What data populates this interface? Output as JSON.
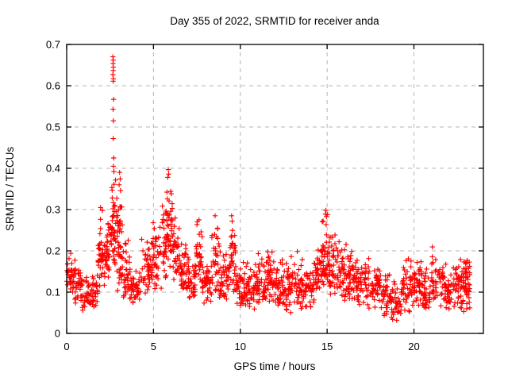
{
  "window": {
    "background": "#ffffff"
  },
  "chart_data": {
    "type": "scatter",
    "title": "Day 355 of 2022, SRMTID for receiver anda",
    "xlabel": "GPS time / hours",
    "ylabel": "SRMTID / TECUs",
    "xlim": [
      0,
      24
    ],
    "ylim": [
      0,
      0.7
    ],
    "xticks": [
      0,
      5,
      10,
      15,
      20
    ],
    "xtick_labels": [
      "0",
      "5",
      "10",
      "15",
      "20"
    ],
    "yticks": [
      0,
      0.1,
      0.2,
      0.3,
      0.4,
      0.5,
      0.6,
      0.7
    ],
    "ytick_labels": [
      "0",
      "0.1",
      "0.2",
      "0.3",
      "0.4",
      "0.5",
      "0.6",
      "0.7"
    ],
    "grid": true,
    "grid_style": "dashed",
    "grid_color": "#b4b4b4",
    "axis_color": "#000000",
    "marker": {
      "shape": "plus",
      "color": "#ff0000",
      "size": 7
    },
    "legend": null,
    "series": [
      {
        "name": "SRMTID",
        "color": "#ff0000",
        "notable_points": [
          [
            2.66,
            0.67
          ],
          [
            2.68,
            0.662
          ],
          [
            2.67,
            0.654
          ],
          [
            2.69,
            0.645
          ],
          [
            2.68,
            0.637
          ],
          [
            2.66,
            0.627
          ],
          [
            2.69,
            0.617
          ],
          [
            2.68,
            0.611
          ],
          [
            2.7,
            0.567
          ],
          [
            2.67,
            0.543
          ],
          [
            2.69,
            0.515
          ],
          [
            2.68,
            0.472
          ],
          [
            2.71,
            0.425
          ],
          [
            2.69,
            0.405
          ],
          [
            2.72,
            0.392
          ],
          [
            3.05,
            0.39
          ],
          [
            3.08,
            0.374
          ],
          [
            3.02,
            0.36
          ],
          [
            3.1,
            0.346
          ],
          [
            5.85,
            0.397
          ],
          [
            5.88,
            0.386
          ],
          [
            5.82,
            0.378
          ],
          [
            1.95,
            0.305
          ],
          [
            2.06,
            0.298
          ],
          [
            8.55,
            0.285
          ],
          [
            9.5,
            0.285
          ],
          [
            9.53,
            0.272
          ],
          [
            14.93,
            0.298
          ],
          [
            14.9,
            0.289
          ],
          [
            14.96,
            0.283
          ]
        ],
        "density_bands": [
          [
            0.0,
            0.35,
            0.09,
            0.21,
            30
          ],
          [
            0.35,
            0.9,
            0.07,
            0.19,
            42
          ],
          [
            0.9,
            1.45,
            0.055,
            0.145,
            36
          ],
          [
            1.45,
            1.8,
            0.06,
            0.17,
            26
          ],
          [
            1.8,
            2.25,
            0.11,
            0.305,
            46
          ],
          [
            2.25,
            2.55,
            0.13,
            0.285,
            30
          ],
          [
            2.55,
            2.9,
            0.14,
            0.4,
            46
          ],
          [
            2.9,
            3.25,
            0.1,
            0.345,
            42
          ],
          [
            3.25,
            3.7,
            0.07,
            0.24,
            36
          ],
          [
            3.7,
            4.3,
            0.07,
            0.165,
            42
          ],
          [
            4.3,
            4.85,
            0.09,
            0.235,
            40
          ],
          [
            4.85,
            5.45,
            0.1,
            0.3,
            46
          ],
          [
            5.45,
            5.75,
            0.13,
            0.33,
            30
          ],
          [
            5.75,
            6.1,
            0.16,
            0.385,
            40
          ],
          [
            6.1,
            6.5,
            0.13,
            0.3,
            36
          ],
          [
            6.5,
            7.0,
            0.1,
            0.22,
            40
          ],
          [
            7.0,
            7.45,
            0.08,
            0.19,
            36
          ],
          [
            7.45,
            7.8,
            0.1,
            0.29,
            30
          ],
          [
            7.8,
            8.35,
            0.07,
            0.19,
            40
          ],
          [
            8.35,
            8.8,
            0.09,
            0.26,
            36
          ],
          [
            8.8,
            9.35,
            0.07,
            0.21,
            40
          ],
          [
            9.35,
            9.75,
            0.09,
            0.285,
            40
          ],
          [
            9.75,
            10.4,
            0.06,
            0.18,
            52
          ],
          [
            10.4,
            11.2,
            0.055,
            0.2,
            62
          ],
          [
            11.2,
            12.0,
            0.06,
            0.21,
            62
          ],
          [
            12.0,
            12.8,
            0.05,
            0.19,
            62
          ],
          [
            12.8,
            13.6,
            0.045,
            0.2,
            62
          ],
          [
            13.6,
            14.25,
            0.06,
            0.18,
            48
          ],
          [
            14.25,
            14.7,
            0.09,
            0.245,
            36
          ],
          [
            14.7,
            15.1,
            0.11,
            0.3,
            42
          ],
          [
            15.1,
            15.5,
            0.09,
            0.265,
            36
          ],
          [
            15.5,
            16.1,
            0.08,
            0.23,
            46
          ],
          [
            16.1,
            16.7,
            0.07,
            0.21,
            46
          ],
          [
            16.7,
            17.4,
            0.06,
            0.2,
            52
          ],
          [
            17.4,
            18.1,
            0.05,
            0.17,
            50
          ],
          [
            18.1,
            18.7,
            0.04,
            0.15,
            40
          ],
          [
            18.7,
            19.3,
            0.03,
            0.135,
            40
          ],
          [
            19.3,
            19.9,
            0.05,
            0.19,
            42
          ],
          [
            19.9,
            20.5,
            0.06,
            0.205,
            46
          ],
          [
            20.5,
            21.0,
            0.05,
            0.165,
            36
          ],
          [
            21.0,
            21.7,
            0.06,
            0.225,
            46
          ],
          [
            21.7,
            22.4,
            0.05,
            0.18,
            46
          ],
          [
            22.4,
            22.85,
            0.06,
            0.19,
            36
          ],
          [
            22.85,
            23.25,
            0.05,
            0.21,
            44
          ]
        ],
        "seed": 355
      }
    ]
  }
}
